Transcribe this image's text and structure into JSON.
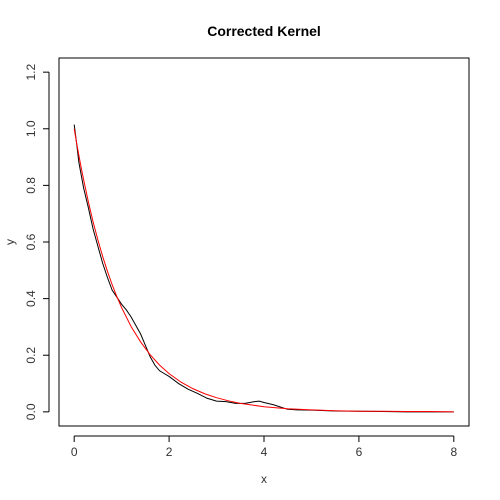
{
  "chart_data": {
    "type": "line",
    "title": "Corrected Kernel",
    "xlabel": "x",
    "ylabel": "y",
    "xlim": [
      -0.32,
      8.32
    ],
    "ylim": [
      -0.05,
      1.25
    ],
    "xticks": [
      0,
      2,
      4,
      6,
      8
    ],
    "yticks": [
      0.0,
      0.2,
      0.4,
      0.6,
      0.8,
      1.0,
      1.2
    ],
    "grid": false,
    "legend": "none",
    "colors": {
      "estimate": "#000000",
      "reference": "#ff0000",
      "frame": "#000000"
    },
    "series": [
      {
        "color": "#000000",
        "x": [
          0.0,
          0.05,
          0.1,
          0.2,
          0.3,
          0.4,
          0.5,
          0.6,
          0.7,
          0.8,
          0.9,
          1.0,
          1.1,
          1.2,
          1.3,
          1.4,
          1.5,
          1.6,
          1.7,
          1.8,
          1.9,
          2.0,
          2.2,
          2.4,
          2.6,
          2.8,
          3.0,
          3.2,
          3.4,
          3.6,
          3.8,
          3.9,
          4.0,
          4.2,
          4.4,
          4.5,
          4.7,
          5.0,
          5.5,
          6.0,
          6.5,
          7.0,
          7.5,
          8.0
        ],
        "y": [
          1.015,
          0.95,
          0.88,
          0.79,
          0.72,
          0.645,
          0.585,
          0.525,
          0.475,
          0.43,
          0.405,
          0.38,
          0.36,
          0.335,
          0.305,
          0.275,
          0.235,
          0.195,
          0.165,
          0.145,
          0.135,
          0.125,
          0.1,
          0.08,
          0.065,
          0.048,
          0.038,
          0.036,
          0.03,
          0.03,
          0.036,
          0.038,
          0.033,
          0.025,
          0.014,
          0.009,
          0.007,
          0.006,
          0.003,
          0.002,
          0.001,
          0.0,
          0.0,
          0.0
        ]
      },
      {
        "color": "#ff0000",
        "x": [
          0.0,
          0.05,
          0.1,
          0.15,
          0.2,
          0.3,
          0.4,
          0.5,
          0.6,
          0.7,
          0.8,
          0.9,
          1.0,
          1.2,
          1.4,
          1.6,
          1.8,
          2.0,
          2.25,
          2.5,
          2.75,
          3.0,
          3.25,
          3.5,
          3.75,
          4.0,
          4.5,
          5.0,
          5.5,
          6.0,
          6.5,
          7.0,
          7.5,
          8.0
        ],
        "y": [
          1.0,
          0.951,
          0.905,
          0.861,
          0.819,
          0.741,
          0.67,
          0.607,
          0.549,
          0.497,
          0.449,
          0.407,
          0.368,
          0.301,
          0.247,
          0.202,
          0.165,
          0.135,
          0.105,
          0.082,
          0.064,
          0.05,
          0.039,
          0.03,
          0.024,
          0.018,
          0.011,
          0.007,
          0.004,
          0.002,
          0.002,
          0.001,
          0.001,
          0.0
        ]
      }
    ]
  }
}
